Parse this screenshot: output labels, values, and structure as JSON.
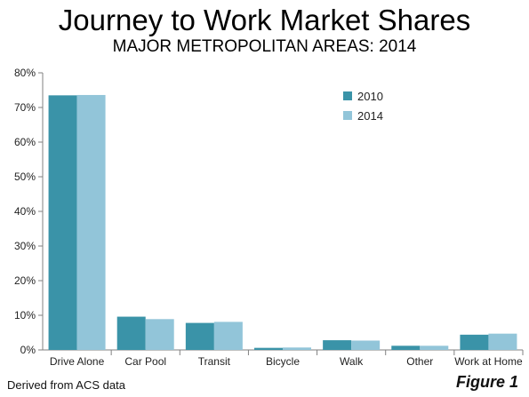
{
  "title": "Journey to Work Market Shares",
  "subtitle": "MAJOR METROPOLITAN AREAS: 2014",
  "footnote": "Derived from ACS data",
  "figure_label": "Figure 1",
  "colors": {
    "2010": "#3a93a8",
    "2014": "#92c5d9",
    "grid": "#d9d9d9",
    "axis": "#808080"
  },
  "chart_data": {
    "type": "bar",
    "categories": [
      "Drive Alone",
      "Car Pool",
      "Transit",
      "Bicycle",
      "Walk",
      "Other",
      "Work at Home"
    ],
    "series": [
      {
        "name": "2010",
        "values": [
          73.5,
          9.6,
          7.8,
          0.6,
          2.8,
          1.2,
          4.4
        ]
      },
      {
        "name": "2014",
        "values": [
          73.6,
          8.9,
          8.1,
          0.7,
          2.7,
          1.2,
          4.7
        ]
      }
    ],
    "ylim": [
      0,
      80
    ],
    "yticks": [
      "0%",
      "10%",
      "20%",
      "30%",
      "40%",
      "50%",
      "60%",
      "70%",
      "80%"
    ],
    "legend_position": "top-right",
    "grid": false
  }
}
